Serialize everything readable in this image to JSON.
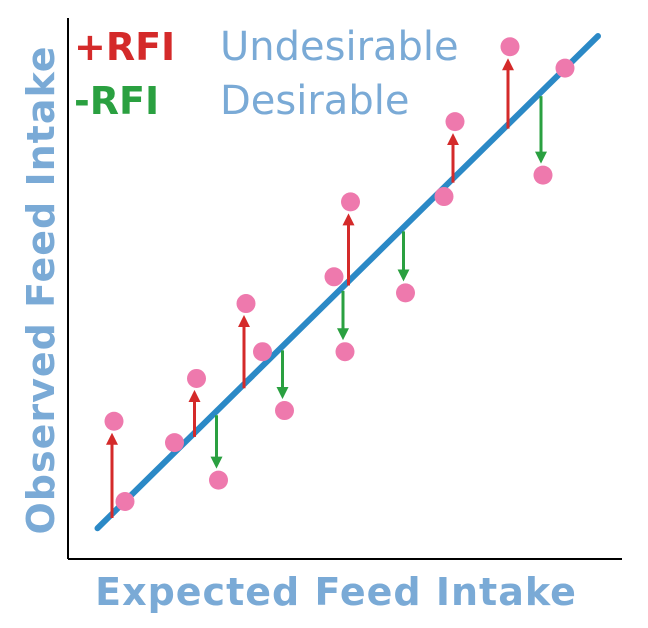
{
  "legend": {
    "positive_label": "+RFI",
    "positive_meaning": "Undesirable",
    "negative_label": "-RFI",
    "negative_meaning": "Desirable"
  },
  "colors": {
    "positive": "#d42a2a",
    "negative": "#2aa040",
    "meaning_text": "#7aaad6",
    "axis_label": "#7aaad6",
    "regression_line": "#2b89c6",
    "points": "#ee79ad",
    "axes": "#000000"
  },
  "chart_data": {
    "type": "scatter",
    "xlabel": "Expected Feed Intake",
    "ylabel": "Observed Feed Intake",
    "xlim": [
      0,
      100
    ],
    "ylim": [
      0,
      100
    ],
    "regression_line": [
      [
        5,
        5
      ],
      [
        96,
        97
      ]
    ],
    "points": [
      {
        "x": 8,
        "y": 25,
        "rfi": "positive"
      },
      {
        "x": 10,
        "y": 10,
        "rfi": "none"
      },
      {
        "x": 19,
        "y": 21,
        "rfi": "none"
      },
      {
        "x": 23,
        "y": 33,
        "rfi": "positive"
      },
      {
        "x": 27,
        "y": 14,
        "rfi": "negative"
      },
      {
        "x": 32,
        "y": 47,
        "rfi": "positive"
      },
      {
        "x": 35,
        "y": 38,
        "rfi": "none"
      },
      {
        "x": 39,
        "y": 27,
        "rfi": "negative"
      },
      {
        "x": 48,
        "y": 52,
        "rfi": "none"
      },
      {
        "x": 50,
        "y": 38,
        "rfi": "negative"
      },
      {
        "x": 51,
        "y": 66,
        "rfi": "positive"
      },
      {
        "x": 61,
        "y": 49,
        "rfi": "negative"
      },
      {
        "x": 68,
        "y": 67,
        "rfi": "none"
      },
      {
        "x": 70,
        "y": 81,
        "rfi": "positive"
      },
      {
        "x": 80,
        "y": 95,
        "rfi": "positive"
      },
      {
        "x": 86,
        "y": 71,
        "rfi": "negative"
      },
      {
        "x": 90,
        "y": 91,
        "rfi": "none"
      }
    ]
  }
}
